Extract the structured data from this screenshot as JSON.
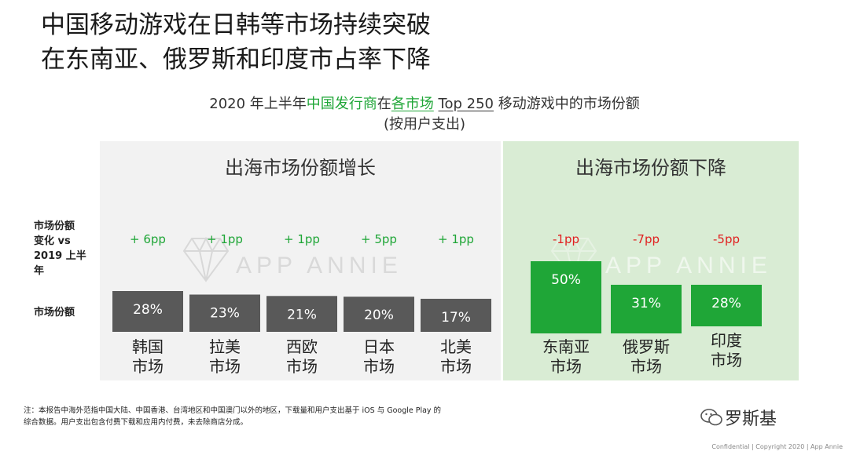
{
  "title_lines": [
    "中国移动游戏在日韩等市场持续突破",
    "在东南亚、俄罗斯和印度市占率下降"
  ],
  "subtitle": {
    "part1": "2020 年上半年",
    "part2": "中国发行商",
    "part3": "在",
    "part4": "各市场",
    "part5": " ",
    "part6": "Top 250",
    "part7": " 移动游戏中的市场份额",
    "line2": "(按用户支出)"
  },
  "panels": {
    "grow_title": "出海市场份额增长",
    "drop_title": "出海市场份额下降"
  },
  "row_labels": {
    "change": [
      "市场份额",
      "变化 vs",
      "2019 上半",
      "年"
    ],
    "share": "市场份额"
  },
  "watermark": "APP ANNIE",
  "chart_data": {
    "type": "bar",
    "title": "2020 年上半年中国发行商在各市场 Top 250 移动游戏中的市场份额",
    "categories": [
      "韩国 市场",
      "拉美 市场",
      "西欧 市场",
      "日本 市场",
      "北美 市场",
      "东南亚 市场",
      "俄罗斯 市场",
      "印度 市场"
    ],
    "category_lines": [
      [
        "韩国",
        "市场"
      ],
      [
        "拉美",
        "市场"
      ],
      [
        "西欧",
        "市场"
      ],
      [
        "日本",
        "市场"
      ],
      [
        "北美",
        "市场"
      ],
      [
        "东南亚",
        "市场"
      ],
      [
        "俄罗斯",
        "市场"
      ],
      [
        "印度",
        "市场"
      ]
    ],
    "values": [
      28,
      23,
      21,
      20,
      17,
      50,
      31,
      28
    ],
    "value_labels": [
      "28%",
      "23%",
      "21%",
      "20%",
      "17%",
      "50%",
      "31%",
      "28%"
    ],
    "change_pp": [
      6,
      1,
      1,
      5,
      1,
      -1,
      -7,
      -5
    ],
    "change_labels": [
      "+ 6pp",
      "+ 1pp",
      "+ 1pp",
      "+ 5pp",
      "+ 1pp",
      "-1pp",
      "-7pp",
      "-5pp"
    ],
    "groups": [
      "growth",
      "growth",
      "growth",
      "growth",
      "growth",
      "decline",
      "decline",
      "decline"
    ],
    "colors": {
      "growth_bar": "#595959",
      "decline_bar": "#1fa637",
      "positive_text": "#1fa637",
      "negative_text": "#e02020"
    }
  },
  "footnote": [
    "注：本报告中海外范指中国大陆、中国香港、台湾地区和中国澳门以外的地区，下载量和用户支出基于 iOS 与 Google Play 的",
    "综合数据。用户支出包含付费下载和应用内付费，未去除商店分成。"
  ],
  "brand": "罗斯基",
  "confidential": "Confidential  |  Copyright 2020 |  App Annie"
}
